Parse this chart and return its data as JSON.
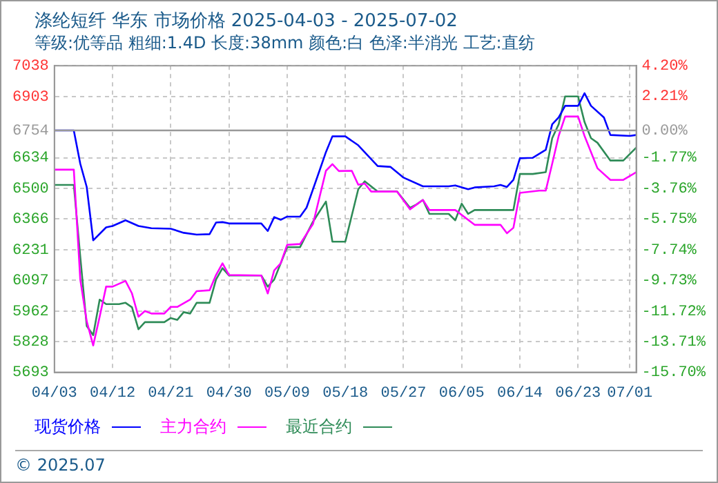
{
  "chart_data": {
    "type": "line",
    "title": "涤纶短纤 华东 市场价格 2025-04-03 - 2025-07-02",
    "subtitle": "等级:优等品 粗细:1.4D 长度:38mm 颜色:白 色泽:半消光 工艺:直纺",
    "annotations": [
      "© 2025.07"
    ],
    "xlim": [
      "--04-03",
      "--07-02"
    ],
    "xticks": [
      {
        "value": "--04-03",
        "label": "04/03"
      },
      {
        "value": "--04-12",
        "label": "04/12"
      },
      {
        "value": "--04-21",
        "label": "04/21"
      },
      {
        "value": "--04-30",
        "label": "04/30"
      },
      {
        "value": "--05-09",
        "label": "05/09"
      },
      {
        "value": "--05-18",
        "label": "05/18"
      },
      {
        "value": "--05-27",
        "label": "05/27"
      },
      {
        "value": "--06-05",
        "label": "06/05"
      },
      {
        "value": "--06-14",
        "label": "06/14"
      },
      {
        "value": "--06-23",
        "label": "06/23"
      },
      {
        "value": "--07-01",
        "label": "07/01"
      }
    ],
    "ylim": [
      5693,
      7038
    ],
    "yticks": [
      5693,
      5828,
      5962,
      6097,
      6231,
      6366,
      6500,
      6634,
      6754,
      6903,
      7038
    ],
    "y2lim": [
      -15.7,
      4.2
    ],
    "y2ticks": [
      {
        "value": -15.7,
        "label": "-15.70%"
      },
      {
        "value": -13.71,
        "label": "-13.71%"
      },
      {
        "value": -11.72,
        "label": "-11.72%"
      },
      {
        "value": -9.73,
        "label": "-9.73%"
      },
      {
        "value": -7.74,
        "label": "-7.74%"
      },
      {
        "value": -5.75,
        "label": "-5.75%"
      },
      {
        "value": -3.76,
        "label": "-3.76%"
      },
      {
        "value": -1.77,
        "label": "-1.77%"
      },
      {
        "value": 0,
        "label": "0.00%"
      },
      {
        "value": 2.21,
        "label": "2.21%"
      },
      {
        "value": 4.2,
        "label": "4.20%"
      }
    ],
    "ref_lines": [
      {
        "axis": "y",
        "value": 6754,
        "color": "#999999"
      }
    ],
    "grid": true,
    "legend": "bottom",
    "marker": "none",
    "line_style": "solid",
    "series": [
      {
        "name": "现货价格",
        "color": "#0000ff",
        "x": [
          "--04-03",
          "--04-06",
          "--04-07",
          "--04-08",
          "--04-09",
          "--04-11",
          "--04-12",
          "--04-14",
          "--04-16",
          "--04-18",
          "--04-21",
          "--04-23",
          "--04-25",
          "--04-27",
          "--04-28",
          "--04-29",
          "--04-30",
          "--05-05",
          "--05-06",
          "--05-07",
          "--05-08",
          "--05-09",
          "--05-11",
          "--05-12",
          "--05-14",
          "--05-15",
          "--05-16",
          "--05-18",
          "--05-20",
          "--05-23",
          "--05-25",
          "--05-27",
          "--05-30",
          "--06-03",
          "--06-04",
          "--06-06",
          "--06-07",
          "--06-10",
          "--06-11",
          "--06-12",
          "--06-13",
          "--06-14",
          "--06-16",
          "--06-18",
          "--06-19",
          "--06-20",
          "--06-21",
          "--06-23",
          "--06-24",
          "--06-25",
          "--06-27",
          "--06-28",
          "--07-01",
          "--07-02"
        ],
        "values": [
          6754,
          6754,
          6608,
          6506,
          6272,
          6329,
          6335,
          6360,
          6335,
          6325,
          6323,
          6305,
          6297,
          6299,
          6350,
          6352,
          6346,
          6346,
          6313,
          6374,
          6362,
          6376,
          6376,
          6415,
          6577,
          6659,
          6728,
          6728,
          6689,
          6598,
          6594,
          6547,
          6509,
          6509,
          6513,
          6496,
          6504,
          6509,
          6515,
          6506,
          6537,
          6632,
          6634,
          6669,
          6781,
          6811,
          6862,
          6862,
          6917,
          6862,
          6811,
          6734,
          6730,
          6734
        ]
      },
      {
        "name": "主力合约",
        "color": "#ff00ff",
        "x": [
          "--04-03",
          "--04-06",
          "--04-07",
          "--04-08",
          "--04-09",
          "--04-10",
          "--04-11",
          "--04-12",
          "--04-14",
          "--04-15",
          "--04-16",
          "--04-17",
          "--04-18",
          "--04-20",
          "--04-21",
          "--04-22",
          "--04-24",
          "--04-25",
          "--04-27",
          "--04-28",
          "--04-29",
          "--04-30",
          "--05-05",
          "--05-06",
          "--05-07",
          "--05-08",
          "--05-09",
          "--05-11",
          "--05-13",
          "--05-15",
          "--05-16",
          "--05-17",
          "--05-19",
          "--05-20",
          "--05-21",
          "--05-22",
          "--05-26",
          "--05-28",
          "--05-30",
          "--05-31",
          "--06-04",
          "--06-07",
          "--06-11",
          "--06-12",
          "--06-13",
          "--06-14",
          "--06-17",
          "--06-18",
          "--06-19",
          "--06-20",
          "--06-21",
          "--06-23",
          "--06-24",
          "--06-26",
          "--06-28",
          "--06-30",
          "--07-02"
        ],
        "values": [
          6582,
          6582,
          6100,
          5917,
          5811,
          5937,
          6069,
          6069,
          6094,
          6039,
          5937,
          5962,
          5951,
          5951,
          5980,
          5980,
          6012,
          6049,
          6053,
          6120,
          6171,
          6120,
          6118,
          6039,
          6140,
          6171,
          6252,
          6256,
          6344,
          6577,
          6606,
          6576,
          6577,
          6516,
          6521,
          6486,
          6486,
          6408,
          6449,
          6405,
          6405,
          6340,
          6340,
          6303,
          6327,
          6480,
          6490,
          6490,
          6608,
          6730,
          6815,
          6815,
          6730,
          6588,
          6537,
          6537,
          6571
        ]
      },
      {
        "name": "最近合约",
        "color": "#2e8b57",
        "x": [
          "--04-03",
          "--04-06",
          "--04-07",
          "--04-08",
          "--04-09",
          "--04-10",
          "--04-11",
          "--04-13",
          "--04-14",
          "--04-15",
          "--04-16",
          "--04-17",
          "--04-20",
          "--04-21",
          "--04-22",
          "--04-23",
          "--04-24",
          "--04-25",
          "--04-27",
          "--04-28",
          "--04-29",
          "--04-30",
          "--05-05",
          "--05-06",
          "--05-07",
          "--05-09",
          "--05-11",
          "--05-13",
          "--05-15",
          "--05-16",
          "--05-18",
          "--05-20",
          "--05-21",
          "--05-23",
          "--05-26",
          "--05-28",
          "--05-29",
          "--05-30",
          "--05-31",
          "--06-03",
          "--06-04",
          "--06-05",
          "--06-06",
          "--06-07",
          "--06-13",
          "--06-14",
          "--06-16",
          "--06-18",
          "--06-19",
          "--06-20",
          "--06-21",
          "--06-23",
          "--06-24",
          "--06-25",
          "--06-26",
          "--06-28",
          "--06-30",
          "--07-02"
        ],
        "values": [
          6515,
          6515,
          6201,
          5896,
          5856,
          6012,
          5992,
          5992,
          5998,
          5978,
          5882,
          5913,
          5913,
          5931,
          5923,
          5957,
          5951,
          5998,
          5998,
          6100,
          6150,
          6118,
          6118,
          6069,
          6100,
          6242,
          6242,
          6354,
          6442,
          6266,
          6266,
          6496,
          6531,
          6486,
          6486,
          6415,
          6429,
          6449,
          6388,
          6388,
          6360,
          6433,
          6388,
          6405,
          6405,
          6563,
          6563,
          6571,
          6720,
          6781,
          6903,
          6903,
          6791,
          6720,
          6700,
          6622,
          6622,
          6679
        ]
      }
    ]
  }
}
